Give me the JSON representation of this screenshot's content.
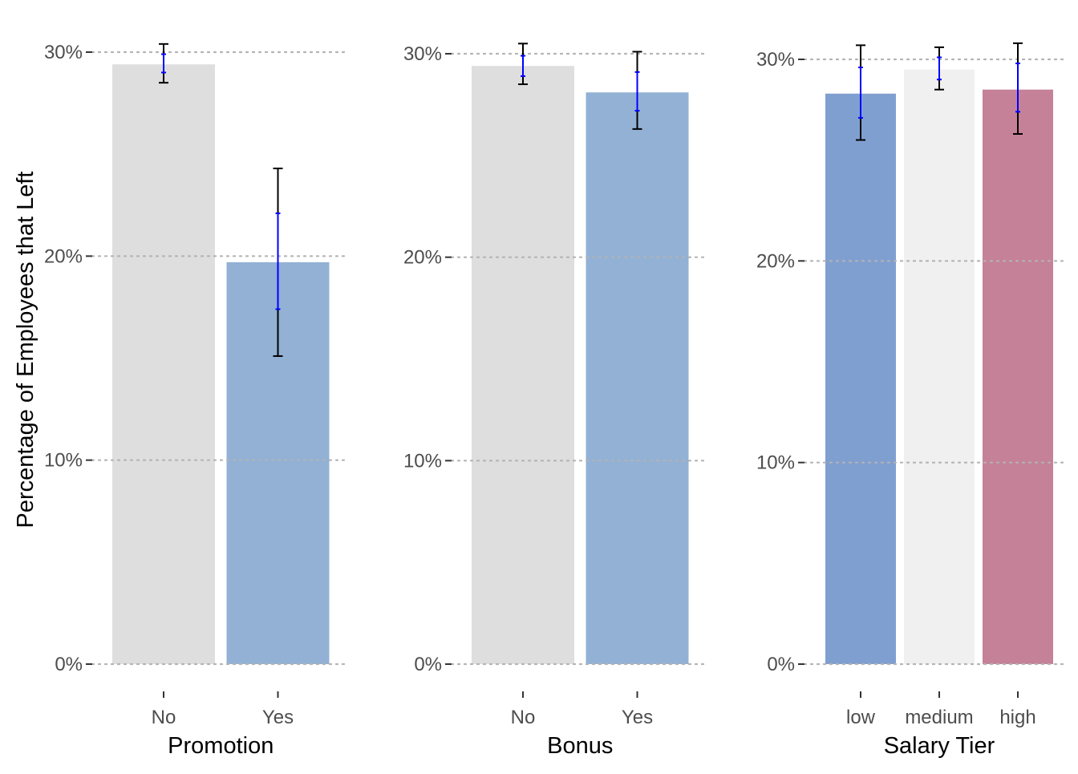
{
  "chart_data": [
    {
      "type": "bar",
      "xlabel": "Promotion",
      "ylabel": "Percentage of Employees that Left",
      "ylim": [
        0,
        30
      ],
      "yticks": [
        0,
        10,
        20,
        30
      ],
      "ytick_labels": [
        "0%",
        "10%",
        "20%",
        "30%"
      ],
      "grid": "horizontal dotted",
      "categories": [
        "No",
        "Yes"
      ],
      "values": [
        29.4,
        19.7
      ],
      "colors": [
        "#dedede",
        "#92b1d5"
      ],
      "error_outer": [
        [
          28.5,
          30.4
        ],
        [
          15.1,
          24.3
        ]
      ],
      "error_inner": [
        [
          29.0,
          29.9
        ],
        [
          17.4,
          22.1
        ]
      ]
    },
    {
      "type": "bar",
      "xlabel": "Bonus",
      "ylabel": "",
      "ylim": [
        0,
        30
      ],
      "yticks": [
        0,
        10,
        20,
        30
      ],
      "ytick_labels": [
        "0%",
        "10%",
        "20%",
        "30%"
      ],
      "grid": "horizontal dotted",
      "categories": [
        "No",
        "Yes"
      ],
      "values": [
        29.4,
        28.1
      ],
      "colors": [
        "#dedede",
        "#92b1d5"
      ],
      "error_outer": [
        [
          28.5,
          30.5
        ],
        [
          26.3,
          30.1
        ]
      ],
      "error_inner": [
        [
          28.9,
          29.9
        ],
        [
          27.2,
          29.1
        ]
      ]
    },
    {
      "type": "bar",
      "xlabel": "Salary Tier",
      "ylabel": "",
      "ylim": [
        0,
        30
      ],
      "yticks": [
        0,
        10,
        20,
        30
      ],
      "ytick_labels": [
        "0%",
        "10%",
        "20%",
        "30%"
      ],
      "grid": "horizontal dotted",
      "categories": [
        "low",
        "medium",
        "high"
      ],
      "values": [
        28.3,
        29.5,
        28.5
      ],
      "colors": [
        "#809fd1",
        "#f0f0f0",
        "#c58198"
      ],
      "error_outer": [
        [
          26.0,
          30.7
        ],
        [
          28.5,
          30.6
        ],
        [
          26.3,
          30.8
        ]
      ],
      "error_inner": [
        [
          27.1,
          29.6
        ],
        [
          29.0,
          30.1
        ],
        [
          27.4,
          29.8
        ]
      ]
    }
  ],
  "error_bar_colors": {
    "outer": "#000000",
    "inner": "#0000ff"
  }
}
